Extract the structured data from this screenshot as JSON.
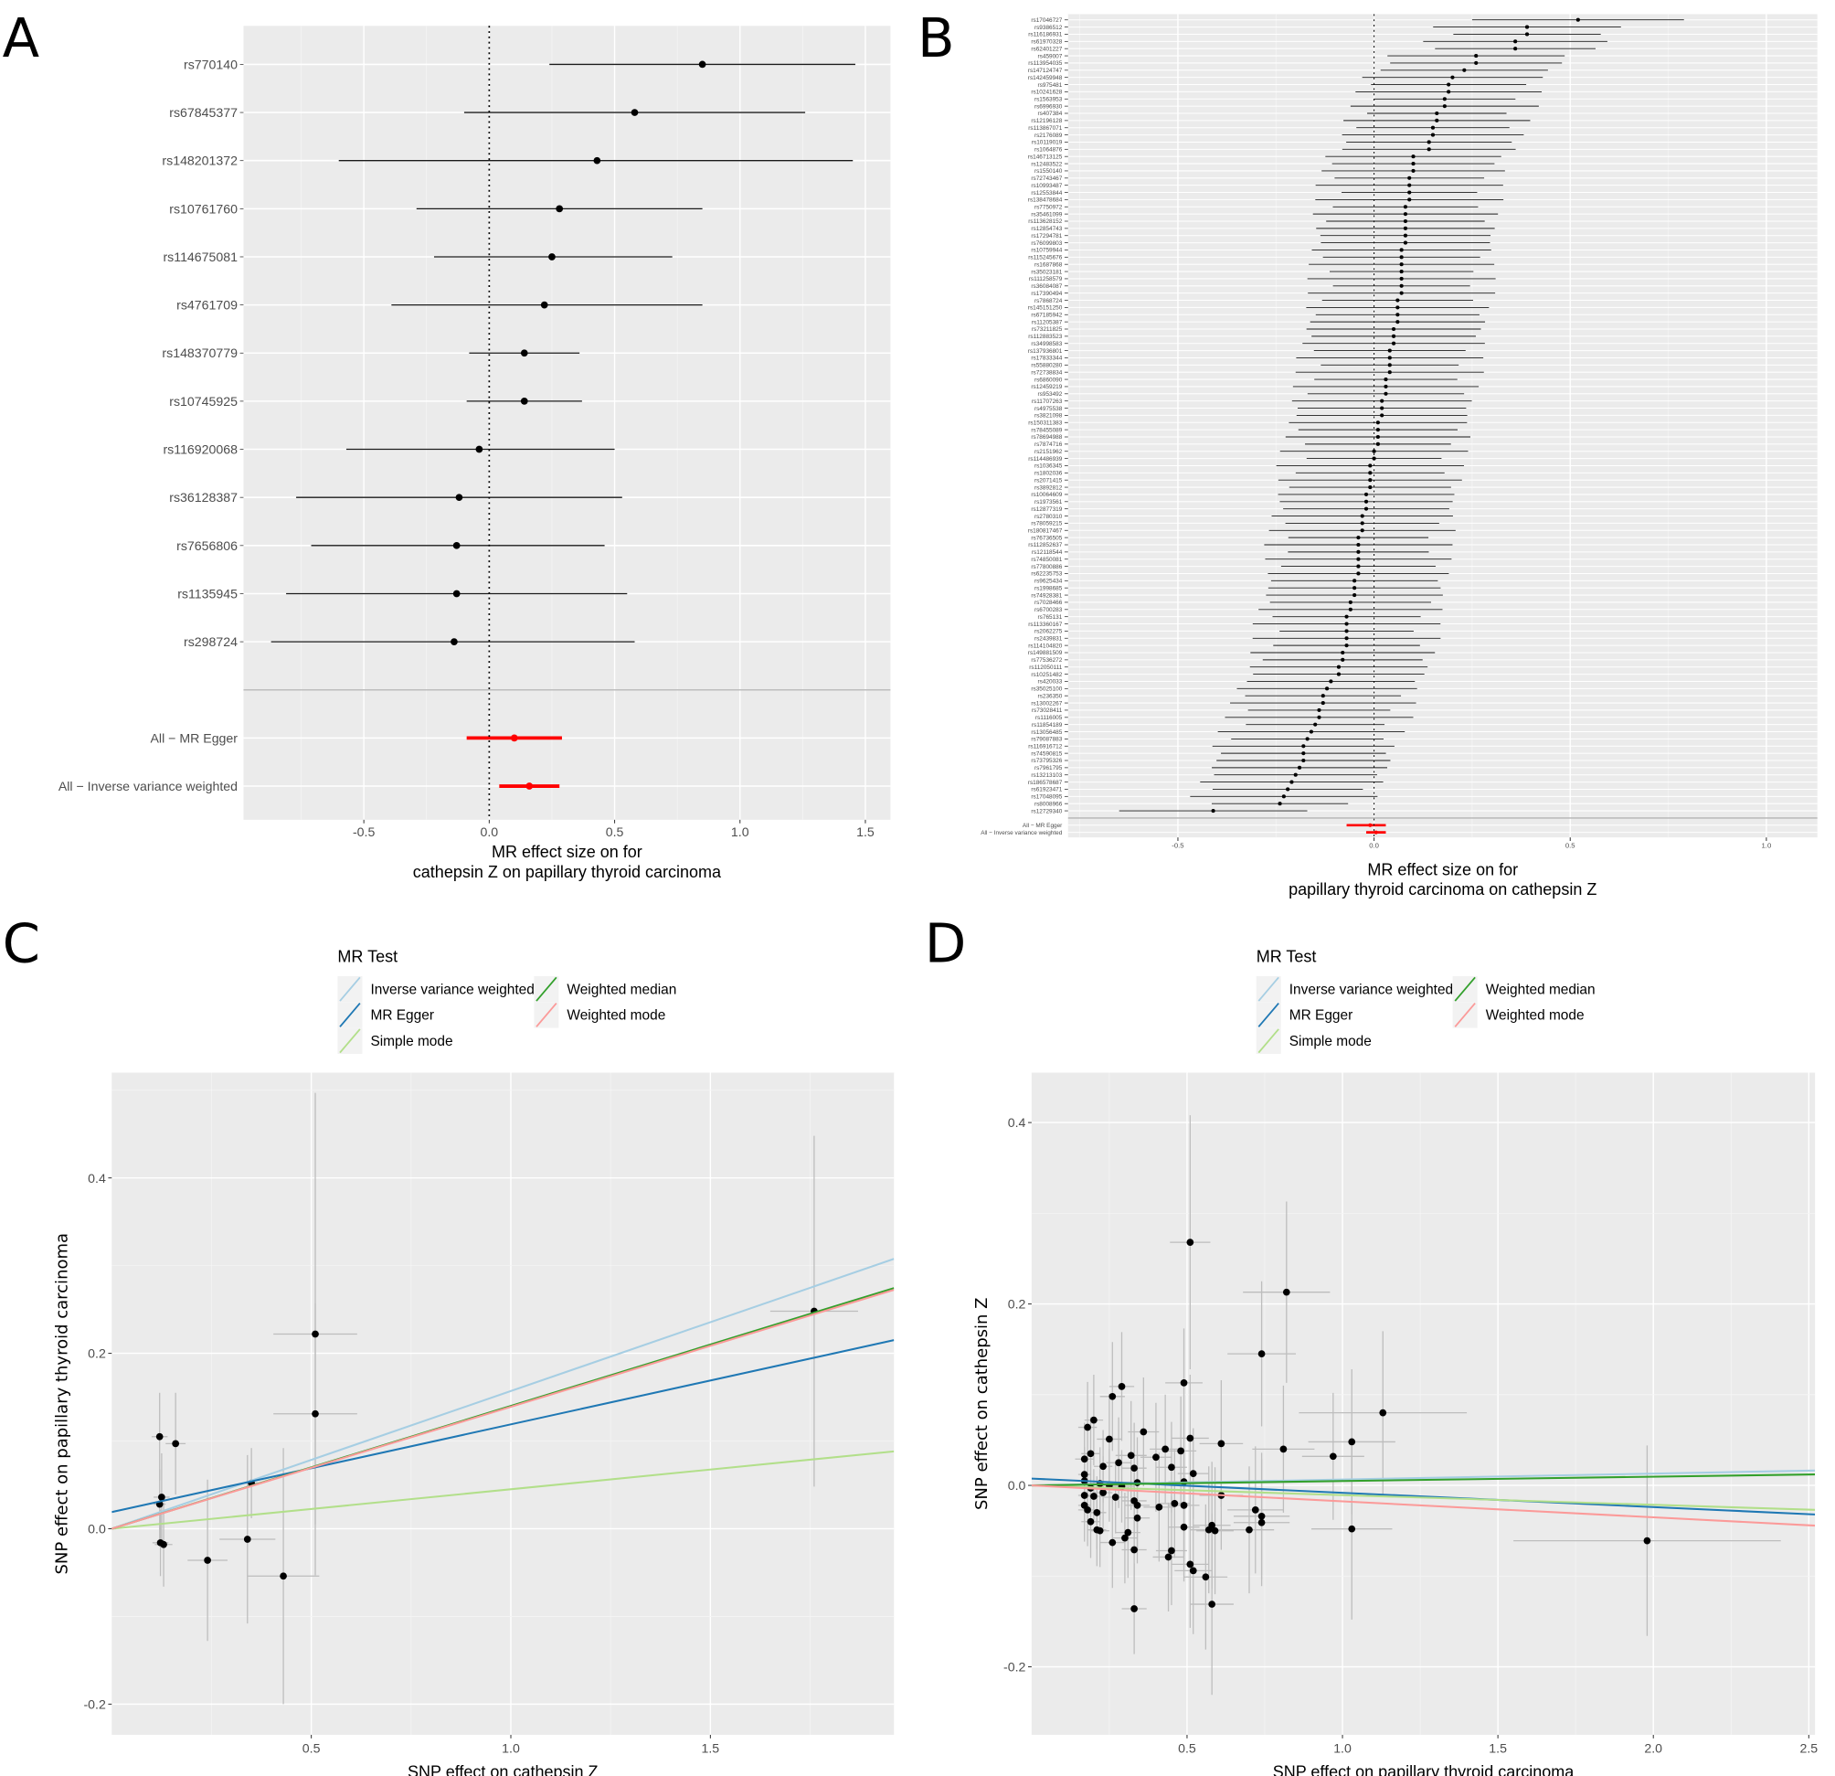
{
  "figure": {
    "panels": [
      "A",
      "B",
      "C",
      "D"
    ]
  },
  "chart_data": [
    {
      "panel": "A",
      "type": "scatter",
      "subtype": "forest",
      "xlabel_line1": "MR effect size on for",
      "xlabel_line2": "cathepsin Z on papillary thyroid carcinoma",
      "ylabel": "",
      "xlim": [
        -0.98,
        1.6
      ],
      "xticks": [
        -0.5,
        0.0,
        0.5,
        1.0,
        1.5
      ],
      "xtick_labels": [
        "-0.5",
        "0.0",
        "0.5",
        "1.0",
        "1.5"
      ],
      "reference_line": 0,
      "grid": true,
      "snps": [
        {
          "label": "rs770140",
          "b": 0.85,
          "lo": 0.24,
          "hi": 1.46
        },
        {
          "label": "rs67845377",
          "b": 0.58,
          "lo": -0.1,
          "hi": 1.26
        },
        {
          "label": "rs148201372",
          "b": 0.43,
          "lo": -0.6,
          "hi": 1.45
        },
        {
          "label": "rs10761760",
          "b": 0.28,
          "lo": -0.29,
          "hi": 0.85
        },
        {
          "label": "rs114675081",
          "b": 0.25,
          "lo": -0.22,
          "hi": 0.73
        },
        {
          "label": "rs4761709",
          "b": 0.22,
          "lo": -0.39,
          "hi": 0.85
        },
        {
          "label": "rs148370779",
          "b": 0.14,
          "lo": -0.08,
          "hi": 0.36
        },
        {
          "label": "rs10745925",
          "b": 0.14,
          "lo": -0.09,
          "hi": 0.37
        },
        {
          "label": "rs116920068",
          "b": -0.04,
          "lo": -0.57,
          "hi": 0.5
        },
        {
          "label": "rs36128387",
          "b": -0.12,
          "lo": -0.77,
          "hi": 0.53
        },
        {
          "label": "rs7656806",
          "b": -0.13,
          "lo": -0.71,
          "hi": 0.46
        },
        {
          "label": "rs1135945",
          "b": -0.13,
          "lo": -0.81,
          "hi": 0.55
        },
        {
          "label": "rs298724",
          "b": -0.14,
          "lo": -0.87,
          "hi": 0.58
        }
      ],
      "summary": [
        {
          "label": "All − MR Egger",
          "b": 0.1,
          "lo": -0.09,
          "hi": 0.29
        },
        {
          "label": "All − Inverse variance weighted",
          "b": 0.16,
          "lo": 0.04,
          "hi": 0.28
        }
      ],
      "summary_color": "#ff0000"
    },
    {
      "panel": "B",
      "type": "scatter",
      "subtype": "forest",
      "xlabel_line1": "MR effect size on for",
      "xlabel_line2": "papillary thyroid carcinoma on cathepsin Z",
      "xlim": [
        -0.78,
        1.13
      ],
      "xticks": [
        -0.5,
        0.0,
        0.5,
        1.0
      ],
      "xtick_labels": [
        "-0.5",
        "0.0",
        "0.5",
        "1.0"
      ],
      "reference_line": 0,
      "grid": true,
      "snp_labels": [
        "rs17046727",
        "rs9386512",
        "rs116186931",
        "rs61970328",
        "rs62401227",
        "rs459007",
        "rs113954035",
        "rs147124747",
        "rs142459948",
        "rs975481",
        "rs10241628",
        "rs1563953",
        "rs6996930",
        "rs407384",
        "rs12196128",
        "rs113867071",
        "rs2176089",
        "rs10119019",
        "rs1064876",
        "rs146713125",
        "rs12483522",
        "rs1550140",
        "rs72743467",
        "rs10993487",
        "rs12553844",
        "rs138478684",
        "rs7750972",
        "rs35461099",
        "rs113628152",
        "rs12854743",
        "rs17294781",
        "rs76099803",
        "rs10759944",
        "rs115245676",
        "rs1687868",
        "rs35023181",
        "rs111258579",
        "rs36084087",
        "rs17390494",
        "rs7868724",
        "rs145151250",
        "rs67185942",
        "rs11205387",
        "rs73211825",
        "rs112883523",
        "rs34998583",
        "rs137936801",
        "rs17833344",
        "rs55880280",
        "rs72738834",
        "rs6860090",
        "rs12459219",
        "rs953492",
        "rs11707263",
        "rs4975538",
        "rs3821098",
        "rs150311383",
        "rs78455089",
        "rs78694988",
        "rs7874716",
        "rs2151962",
        "rs114486939",
        "rs1036345",
        "rs1802036",
        "rs2071415",
        "rs3892812",
        "rs10064609",
        "rs1973561",
        "rs12877319",
        "rs2780310",
        "rs78059215",
        "rs180817467",
        "rs76736505",
        "rs112852637",
        "rs12118544",
        "rs74850081",
        "rs77800886",
        "rs62235753",
        "rs9625434",
        "rs1998685",
        "rs74928381",
        "rs7028466",
        "rs6700283",
        "rs765131",
        "rs113360167",
        "rs2062275",
        "rs2439831",
        "rs114104820",
        "rs149881509",
        "rs77536272",
        "rs112050111",
        "rs10251482",
        "rs420033",
        "rs35025100",
        "rs236350",
        "rs13002267",
        "rs73028411",
        "rs1116005",
        "rs11854189",
        "rs13056485",
        "rs79087883",
        "rs116916712",
        "rs74590815",
        "rs73795326",
        "rs7961795",
        "rs13213103",
        "rs186578687",
        "rs61923471",
        "rs17048095",
        "rs8008966",
        "rs12729340"
      ],
      "snp_b": [
        0.52,
        0.39,
        0.39,
        0.36,
        0.36,
        0.26,
        0.26,
        0.23,
        0.2,
        0.19,
        0.19,
        0.18,
        0.18,
        0.16,
        0.16,
        0.15,
        0.15,
        0.14,
        0.14,
        0.1,
        0.1,
        0.1,
        0.09,
        0.09,
        0.09,
        0.09,
        0.08,
        0.08,
        0.08,
        0.08,
        0.08,
        0.08,
        0.07,
        0.07,
        0.07,
        0.07,
        0.07,
        0.07,
        0.07,
        0.06,
        0.06,
        0.06,
        0.06,
        0.05,
        0.05,
        0.05,
        0.04,
        0.04,
        0.04,
        0.04,
        0.03,
        0.03,
        0.03,
        0.02,
        0.02,
        0.02,
        0.01,
        0.01,
        0.01,
        0.01,
        0.0,
        0.0,
        -0.01,
        -0.01,
        -0.01,
        -0.01,
        -0.02,
        -0.02,
        -0.02,
        -0.03,
        -0.03,
        -0.03,
        -0.04,
        -0.04,
        -0.04,
        -0.04,
        -0.04,
        -0.04,
        -0.05,
        -0.05,
        -0.05,
        -0.06,
        -0.06,
        -0.07,
        -0.07,
        -0.07,
        -0.07,
        -0.07,
        -0.08,
        -0.08,
        -0.09,
        -0.09,
        -0.11,
        -0.12,
        -0.13,
        -0.13,
        -0.14,
        -0.14,
        -0.15,
        -0.16,
        -0.17,
        -0.18,
        -0.18,
        -0.18,
        -0.19,
        -0.2,
        -0.21,
        -0.22,
        -0.23,
        -0.24,
        -0.41
      ],
      "summary": [
        {
          "label": "All − MR Egger",
          "b": -0.01,
          "lo": -0.07,
          "hi": 0.03
        },
        {
          "label": "All − Inverse variance weighted",
          "b": 0.005,
          "lo": -0.02,
          "hi": 0.03
        }
      ],
      "summary_color": "#ff0000"
    },
    {
      "panel": "C",
      "type": "scatter",
      "xlabel": "SNP effect on cathepsin Z",
      "ylabel": "SNP effect on papillary thyroid carcinoma",
      "xlim": [
        0.0,
        1.96
      ],
      "ylim": [
        -0.235,
        0.52
      ],
      "xticks": [
        0.5,
        1.0,
        1.5
      ],
      "yticks": [
        -0.2,
        0.0,
        0.2,
        0.4
      ],
      "xtick_labels": [
        "0.5",
        "1.0",
        "1.5"
      ],
      "ytick_labels": [
        "-0.2",
        "0.0",
        "0.2",
        "0.4"
      ],
      "grid": true,
      "points": [
        {
          "x": 0.12,
          "y": 0.105,
          "xerr": 0.02,
          "yerr": 0.05
        },
        {
          "x": 0.16,
          "y": 0.097,
          "xerr": 0.025,
          "yerr": 0.058
        },
        {
          "x": 0.12,
          "y": 0.028,
          "xerr": 0.015,
          "yerr": 0.04
        },
        {
          "x": 0.125,
          "y": 0.036,
          "xerr": 0.02,
          "yerr": 0.05
        },
        {
          "x": 0.122,
          "y": -0.016,
          "xerr": 0.02,
          "yerr": 0.038
        },
        {
          "x": 0.13,
          "y": -0.018,
          "xerr": 0.022,
          "yerr": 0.048
        },
        {
          "x": 0.24,
          "y": -0.036,
          "xerr": 0.05,
          "yerr": 0.092
        },
        {
          "x": 0.34,
          "y": -0.012,
          "xerr": 0.07,
          "yerr": 0.096
        },
        {
          "x": 0.35,
          "y": 0.052,
          "xerr": 0.02,
          "yerr": 0.04
        },
        {
          "x": 0.43,
          "y": -0.054,
          "xerr": 0.09,
          "yerr": 0.146
        },
        {
          "x": 0.51,
          "y": 0.222,
          "xerr": 0.105,
          "yerr": 0.275
        },
        {
          "x": 0.51,
          "y": 0.131,
          "xerr": 0.105,
          "yerr": 0.126
        },
        {
          "x": 1.76,
          "y": 0.248,
          "xerr": 0.11,
          "yerr": 0.2
        }
      ],
      "lines": [
        {
          "name": "Inverse variance weighted",
          "color": "#a6cee3",
          "intercept": 0.0,
          "slope": 0.157
        },
        {
          "name": "MR Egger",
          "color": "#1f78b4",
          "intercept": 0.019,
          "slope": 0.1
        },
        {
          "name": "Simple mode",
          "color": "#b2df8a",
          "intercept": 0.0,
          "slope": 0.045
        },
        {
          "name": "Weighted median",
          "color": "#33a02c",
          "intercept": 0.0,
          "slope": 0.14
        },
        {
          "name": "Weighted mode",
          "color": "#fb9a99",
          "intercept": 0.0,
          "slope": 0.139
        }
      ],
      "legend": {
        "title": "MR Test",
        "position": "top"
      }
    },
    {
      "panel": "D",
      "type": "scatter",
      "xlabel": "SNP effect on papillary thyroid carcinoma",
      "ylabel": "SNP effect on cathepsin Z",
      "xlim": [
        0.0,
        2.52
      ],
      "ylim": [
        -0.275,
        0.455
      ],
      "xticks": [
        0.5,
        1.0,
        1.5,
        2.0,
        2.5
      ],
      "yticks": [
        -0.2,
        0.0,
        0.2,
        0.4
      ],
      "xtick_labels": [
        "0.5",
        "1.0",
        "1.5",
        "2.0",
        "2.5"
      ],
      "ytick_labels": [
        "-0.2",
        "0.0",
        "0.2",
        "0.4"
      ],
      "grid": true,
      "points": [
        {
          "x": 0.51,
          "y": 0.268,
          "xerr": 0.065,
          "yerr": 0.14
        },
        {
          "x": 0.82,
          "y": 0.213,
          "xerr": 0.14,
          "yerr": 0.1
        },
        {
          "x": 0.74,
          "y": 0.145,
          "xerr": 0.11,
          "yerr": 0.08
        },
        {
          "x": 0.49,
          "y": 0.113,
          "xerr": 0.06,
          "yerr": 0.06
        },
        {
          "x": 0.29,
          "y": 0.109,
          "xerr": 0.04,
          "yerr": 0.06
        },
        {
          "x": 0.26,
          "y": 0.098,
          "xerr": 0.04,
          "yerr": 0.06
        },
        {
          "x": 1.13,
          "y": 0.08,
          "xerr": 0.27,
          "yerr": 0.09
        },
        {
          "x": 0.2,
          "y": 0.072,
          "xerr": 0.03,
          "yerr": 0.05
        },
        {
          "x": 0.18,
          "y": 0.064,
          "xerr": 0.03,
          "yerr": 0.05
        },
        {
          "x": 0.36,
          "y": 0.059,
          "xerr": 0.05,
          "yerr": 0.06
        },
        {
          "x": 0.51,
          "y": 0.052,
          "xerr": 0.06,
          "yerr": 0.07
        },
        {
          "x": 0.25,
          "y": 0.051,
          "xerr": 0.04,
          "yerr": 0.05
        },
        {
          "x": 1.03,
          "y": 0.048,
          "xerr": 0.14,
          "yerr": 0.08
        },
        {
          "x": 0.61,
          "y": 0.046,
          "xerr": 0.07,
          "yerr": 0.07
        },
        {
          "x": 0.81,
          "y": 0.04,
          "xerr": 0.1,
          "yerr": 0.07
        },
        {
          "x": 0.97,
          "y": 0.032,
          "xerr": 0.1,
          "yerr": 0.07
        },
        {
          "x": 0.43,
          "y": 0.04,
          "xerr": 0.05,
          "yerr": 0.06
        },
        {
          "x": 0.48,
          "y": 0.038,
          "xerr": 0.05,
          "yerr": 0.06
        },
        {
          "x": 0.32,
          "y": 0.033,
          "xerr": 0.05,
          "yerr": 0.06
        },
        {
          "x": 0.4,
          "y": 0.031,
          "xerr": 0.05,
          "yerr": 0.06
        },
        {
          "x": 0.17,
          "y": 0.029,
          "xerr": 0.03,
          "yerr": 0.04
        },
        {
          "x": 0.19,
          "y": 0.035,
          "xerr": 0.03,
          "yerr": 0.04
        },
        {
          "x": 0.23,
          "y": 0.021,
          "xerr": 0.03,
          "yerr": 0.04
        },
        {
          "x": 0.28,
          "y": 0.025,
          "xerr": 0.04,
          "yerr": 0.05
        },
        {
          "x": 0.33,
          "y": 0.019,
          "xerr": 0.04,
          "yerr": 0.05
        },
        {
          "x": 0.45,
          "y": 0.02,
          "xerr": 0.05,
          "yerr": 0.05
        },
        {
          "x": 0.52,
          "y": 0.013,
          "xerr": 0.05,
          "yerr": 0.05
        },
        {
          "x": 0.17,
          "y": 0.012,
          "xerr": 0.02,
          "yerr": 0.03
        },
        {
          "x": 0.17,
          "y": 0.005,
          "xerr": 0.02,
          "yerr": 0.03
        },
        {
          "x": 0.19,
          "y": -0.003,
          "xerr": 0.03,
          "yerr": 0.03
        },
        {
          "x": 0.22,
          "y": 0.002,
          "xerr": 0.03,
          "yerr": 0.04
        },
        {
          "x": 0.25,
          "y": 0.0,
          "xerr": 0.03,
          "yerr": 0.04
        },
        {
          "x": 0.29,
          "y": -0.001,
          "xerr": 0.04,
          "yerr": 0.04
        },
        {
          "x": 0.34,
          "y": 0.003,
          "xerr": 0.04,
          "yerr": 0.05
        },
        {
          "x": 0.49,
          "y": 0.004,
          "xerr": 0.05,
          "yerr": 0.05
        },
        {
          "x": 0.17,
          "y": -0.011,
          "xerr": 0.02,
          "yerr": 0.03
        },
        {
          "x": 0.2,
          "y": -0.012,
          "xerr": 0.03,
          "yerr": 0.03
        },
        {
          "x": 0.23,
          "y": -0.008,
          "xerr": 0.03,
          "yerr": 0.04
        },
        {
          "x": 0.27,
          "y": -0.013,
          "xerr": 0.04,
          "yerr": 0.04
        },
        {
          "x": 0.61,
          "y": -0.011,
          "xerr": 0.07,
          "yerr": 0.06
        },
        {
          "x": 0.33,
          "y": -0.017,
          "xerr": 0.04,
          "yerr": 0.05
        },
        {
          "x": 0.17,
          "y": -0.022,
          "xerr": 0.02,
          "yerr": 0.04
        },
        {
          "x": 0.18,
          "y": -0.027,
          "xerr": 0.03,
          "yerr": 0.04
        },
        {
          "x": 0.21,
          "y": -0.03,
          "xerr": 0.03,
          "yerr": 0.04
        },
        {
          "x": 0.34,
          "y": -0.022,
          "xerr": 0.04,
          "yerr": 0.05
        },
        {
          "x": 0.41,
          "y": -0.024,
          "xerr": 0.05,
          "yerr": 0.06
        },
        {
          "x": 0.46,
          "y": -0.02,
          "xerr": 0.05,
          "yerr": 0.06
        },
        {
          "x": 0.49,
          "y": -0.022,
          "xerr": 0.05,
          "yerr": 0.06
        },
        {
          "x": 0.72,
          "y": -0.027,
          "xerr": 0.09,
          "yerr": 0.07
        },
        {
          "x": 0.74,
          "y": -0.034,
          "xerr": 0.09,
          "yerr": 0.07
        },
        {
          "x": 0.74,
          "y": -0.041,
          "xerr": 0.09,
          "yerr": 0.07
        },
        {
          "x": 0.19,
          "y": -0.04,
          "xerr": 0.03,
          "yerr": 0.04
        },
        {
          "x": 0.34,
          "y": -0.036,
          "xerr": 0.04,
          "yerr": 0.05
        },
        {
          "x": 0.21,
          "y": -0.049,
          "xerr": 0.03,
          "yerr": 0.04
        },
        {
          "x": 0.22,
          "y": -0.05,
          "xerr": 0.03,
          "yerr": 0.04
        },
        {
          "x": 0.49,
          "y": -0.046,
          "xerr": 0.05,
          "yerr": 0.06
        },
        {
          "x": 0.57,
          "y": -0.049,
          "xerr": 0.06,
          "yerr": 0.07
        },
        {
          "x": 0.58,
          "y": -0.044,
          "xerr": 0.06,
          "yerr": 0.07
        },
        {
          "x": 0.59,
          "y": -0.05,
          "xerr": 0.06,
          "yerr": 0.07
        },
        {
          "x": 0.7,
          "y": -0.049,
          "xerr": 0.08,
          "yerr": 0.07
        },
        {
          "x": 1.03,
          "y": -0.048,
          "xerr": 0.13,
          "yerr": 0.1
        },
        {
          "x": 0.3,
          "y": -0.058,
          "xerr": 0.04,
          "yerr": 0.05
        },
        {
          "x": 0.31,
          "y": -0.052,
          "xerr": 0.04,
          "yerr": 0.05
        },
        {
          "x": 0.26,
          "y": -0.063,
          "xerr": 0.04,
          "yerr": 0.05
        },
        {
          "x": 0.33,
          "y": -0.071,
          "xerr": 0.04,
          "yerr": 0.06
        },
        {
          "x": 0.45,
          "y": -0.072,
          "xerr": 0.05,
          "yerr": 0.06
        },
        {
          "x": 0.44,
          "y": -0.079,
          "xerr": 0.05,
          "yerr": 0.06
        },
        {
          "x": 0.51,
          "y": -0.087,
          "xerr": 0.06,
          "yerr": 0.07
        },
        {
          "x": 0.52,
          "y": -0.094,
          "xerr": 0.06,
          "yerr": 0.07
        },
        {
          "x": 0.56,
          "y": -0.101,
          "xerr": 0.07,
          "yerr": 0.08
        },
        {
          "x": 0.33,
          "y": -0.136,
          "xerr": 0.04,
          "yerr": 0.05
        },
        {
          "x": 0.58,
          "y": -0.131,
          "xerr": 0.07,
          "yerr": 0.1
        },
        {
          "x": 1.98,
          "y": -0.061,
          "xerr": 0.43,
          "yerr": 0.105
        }
      ],
      "lines": [
        {
          "name": "Inverse variance weighted",
          "color": "#a6cee3",
          "intercept": 0.0,
          "slope": 0.0065
        },
        {
          "name": "MR Egger",
          "color": "#1f78b4",
          "intercept": 0.0075,
          "slope": -0.0157
        },
        {
          "name": "Simple mode",
          "color": "#b2df8a",
          "intercept": 0.0,
          "slope": -0.0107
        },
        {
          "name": "Weighted median",
          "color": "#33a02c",
          "intercept": 0.0,
          "slope": 0.0048
        },
        {
          "name": "Weighted mode",
          "color": "#fb9a99",
          "intercept": 0.0,
          "slope": -0.0176
        }
      ],
      "legend": {
        "title": "MR Test",
        "position": "top"
      }
    }
  ]
}
